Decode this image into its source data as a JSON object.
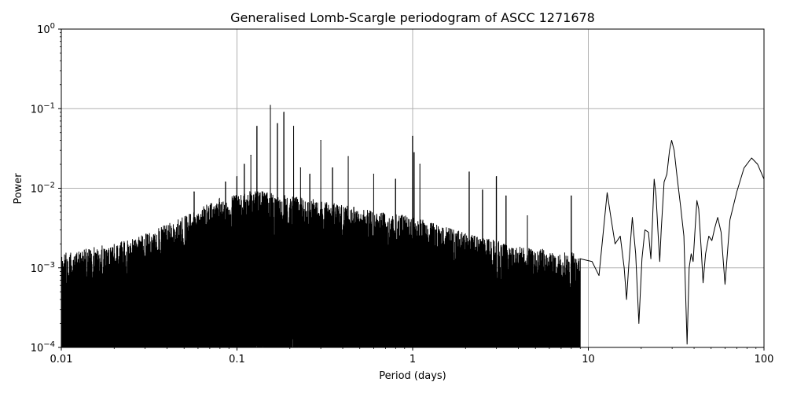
{
  "chart_data": {
    "type": "line",
    "title": "Generalised Lomb-Scargle periodogram of ASCC 1271678",
    "xlabel": "Period (days)",
    "ylabel": "Power",
    "x_scale": "log",
    "y_scale": "log",
    "xlim": [
      0.01,
      100
    ],
    "ylim": [
      0.0001,
      1
    ],
    "grid": true,
    "x_ticks": [
      {
        "value": 0.01,
        "label": "0.01"
      },
      {
        "value": 0.1,
        "label": "0.1"
      },
      {
        "value": 1,
        "label": "1"
      },
      {
        "value": 10,
        "label": "10"
      },
      {
        "value": 100,
        "label": "100"
      }
    ],
    "y_ticks": [
      {
        "value": 0.0001,
        "base": "10",
        "exp": "−4"
      },
      {
        "value": 0.001,
        "base": "10",
        "exp": "−3"
      },
      {
        "value": 0.01,
        "base": "10",
        "exp": "−2"
      },
      {
        "value": 0.1,
        "base": "10",
        "exp": "−1"
      },
      {
        "value": 1,
        "base": "10",
        "exp": "0"
      }
    ],
    "line_color": "#000000",
    "peaks": [
      {
        "x": 0.03,
        "y": 0.0014
      },
      {
        "x": 0.04,
        "y": 0.0017
      },
      {
        "x": 0.047,
        "y": 0.0022
      },
      {
        "x": 0.057,
        "y": 0.009
      },
      {
        "x": 0.07,
        "y": 0.004
      },
      {
        "x": 0.086,
        "y": 0.012
      },
      {
        "x": 0.1,
        "y": 0.014
      },
      {
        "x": 0.11,
        "y": 0.02
      },
      {
        "x": 0.12,
        "y": 0.026
      },
      {
        "x": 0.13,
        "y": 0.06
      },
      {
        "x": 0.155,
        "y": 0.11
      },
      {
        "x": 0.17,
        "y": 0.065
      },
      {
        "x": 0.185,
        "y": 0.09
      },
      {
        "x": 0.21,
        "y": 0.06
      },
      {
        "x": 0.23,
        "y": 0.018
      },
      {
        "x": 0.26,
        "y": 0.015
      },
      {
        "x": 0.3,
        "y": 0.04
      },
      {
        "x": 0.35,
        "y": 0.018
      },
      {
        "x": 0.43,
        "y": 0.025
      },
      {
        "x": 0.6,
        "y": 0.015
      },
      {
        "x": 0.8,
        "y": 0.013
      },
      {
        "x": 1.0,
        "y": 0.045
      },
      {
        "x": 1.02,
        "y": 0.028
      },
      {
        "x": 1.1,
        "y": 0.02
      },
      {
        "x": 2.1,
        "y": 0.016
      },
      {
        "x": 2.5,
        "y": 0.0095
      },
      {
        "x": 3.0,
        "y": 0.014
      },
      {
        "x": 3.4,
        "y": 0.008
      },
      {
        "x": 4.5,
        "y": 0.0045
      },
      {
        "x": 8.0,
        "y": 0.008
      }
    ],
    "smooth_points": [
      [
        9.0,
        0.0013
      ],
      [
        10.5,
        0.0012
      ],
      [
        11.5,
        0.0008
      ],
      [
        12.2,
        0.003
      ],
      [
        12.8,
        0.0088
      ],
      [
        13.4,
        0.0045
      ],
      [
        14.2,
        0.002
      ],
      [
        15.2,
        0.0025
      ],
      [
        16.0,
        0.001
      ],
      [
        16.5,
        0.0004
      ],
      [
        17.0,
        0.0011
      ],
      [
        17.8,
        0.0043
      ],
      [
        18.6,
        0.0015
      ],
      [
        19.4,
        0.0002
      ],
      [
        20.2,
        0.0013
      ],
      [
        21.0,
        0.003
      ],
      [
        22.0,
        0.0028
      ],
      [
        22.7,
        0.0013
      ],
      [
        23.2,
        0.004
      ],
      [
        23.7,
        0.013
      ],
      [
        24.3,
        0.008
      ],
      [
        25.0,
        0.0025
      ],
      [
        25.5,
        0.0012
      ],
      [
        26.0,
        0.003
      ],
      [
        27.0,
        0.012
      ],
      [
        28.0,
        0.015
      ],
      [
        29.0,
        0.03
      ],
      [
        29.8,
        0.04
      ],
      [
        30.8,
        0.03
      ],
      [
        32.0,
        0.014
      ],
      [
        33.5,
        0.006
      ],
      [
        35.0,
        0.0025
      ],
      [
        36.5,
        0.00011
      ],
      [
        37.5,
        0.001
      ],
      [
        38.5,
        0.0015
      ],
      [
        39.5,
        0.0012
      ],
      [
        40.5,
        0.003
      ],
      [
        41.5,
        0.007
      ],
      [
        42.5,
        0.0055
      ],
      [
        44.0,
        0.0016
      ],
      [
        45.0,
        0.00065
      ],
      [
        46.5,
        0.0015
      ],
      [
        48.5,
        0.0025
      ],
      [
        50.5,
        0.0022
      ],
      [
        52.5,
        0.0032
      ],
      [
        54.5,
        0.0043
      ],
      [
        57.0,
        0.0028
      ],
      [
        60.0,
        0.00062
      ],
      [
        64.0,
        0.004
      ],
      [
        70.0,
        0.009
      ],
      [
        77.0,
        0.018
      ],
      [
        85.0,
        0.024
      ],
      [
        92.0,
        0.02
      ],
      [
        100.0,
        0.013
      ]
    ]
  }
}
